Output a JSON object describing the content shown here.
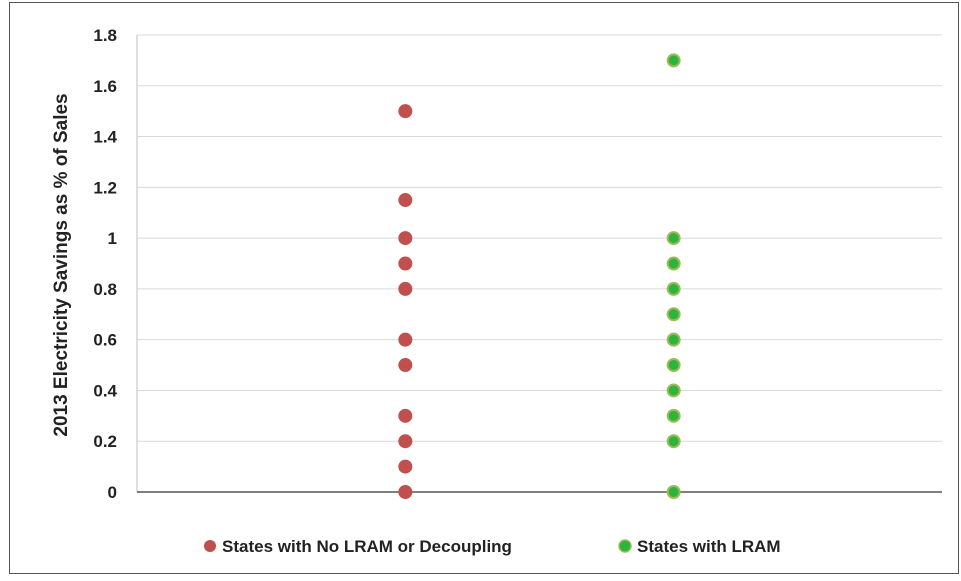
{
  "chart_data": {
    "type": "scatter",
    "title": "",
    "xlabel": "",
    "ylabel": "2013 Electricity Savings as % of Sales",
    "ylim": [
      0,
      1.8
    ],
    "yticks": [
      "0",
      "0.2",
      "0.4",
      "0.6",
      "0.8",
      "1",
      "1.2",
      "1.4",
      "1.6",
      "1.8"
    ],
    "xlim": [
      0,
      3
    ],
    "grid": true,
    "legend_position": "bottom",
    "series": [
      {
        "name": "States with No LRAM or Decoupling",
        "color": "#C0504D",
        "x": [
          1,
          1,
          1,
          1,
          1,
          1,
          1,
          1,
          1,
          1,
          1
        ],
        "y": [
          1.5,
          1.15,
          1.0,
          0.9,
          0.8,
          0.6,
          0.5,
          0.3,
          0.2,
          0.1,
          0.0
        ]
      },
      {
        "name": "States with LRAM",
        "color": "#2DB43C",
        "edge_color": "#9BBB59",
        "x": [
          2,
          2,
          2,
          2,
          2,
          2,
          2,
          2,
          2,
          2,
          2
        ],
        "y": [
          1.7,
          1.0,
          0.9,
          0.8,
          0.7,
          0.6,
          0.5,
          0.4,
          0.3,
          0.2,
          0.0
        ]
      }
    ]
  }
}
